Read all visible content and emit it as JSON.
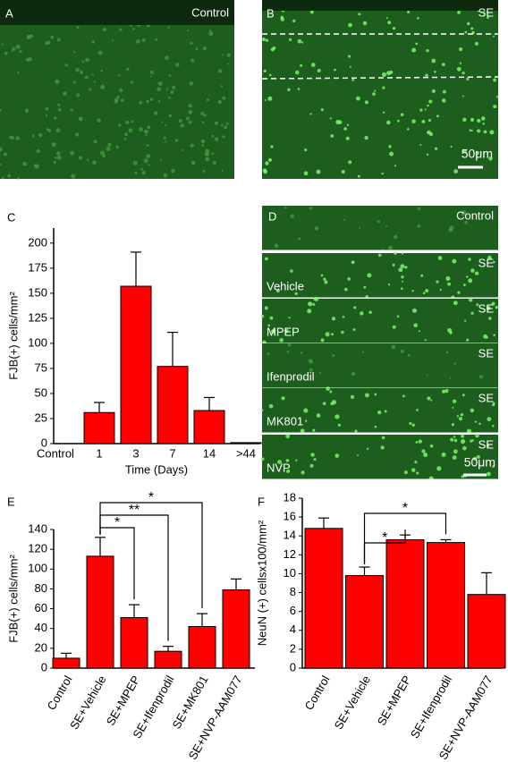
{
  "panels": {
    "A": {
      "letter": "A",
      "label": "Control"
    },
    "B": {
      "letter": "B",
      "label": "SE",
      "scale": "50μm"
    },
    "C": {
      "letter": "C"
    },
    "D": {
      "letter": "D",
      "scale": "50μm",
      "strips": [
        {
          "tag": "Control"
        },
        {
          "tag": "SE",
          "label": "Vehicle"
        },
        {
          "tag": "SE",
          "label": "MPEP"
        },
        {
          "tag": "SE",
          "label": "Ifenprodil"
        },
        {
          "tag": "SE",
          "label": "MK801"
        },
        {
          "tag": "SE",
          "label": "NVP"
        }
      ]
    },
    "E": {
      "letter": "E"
    },
    "F": {
      "letter": "F"
    }
  },
  "chart_data": [
    {
      "type": "bar",
      "ylabel": "FJB(+) cells/mm²",
      "xlabel": "Time (Days)",
      "color": "#ff0000",
      "categories": [
        "Control",
        "1",
        "3",
        "7",
        "14",
        ">44"
      ],
      "values": [
        0,
        31,
        157,
        77,
        33,
        1
      ],
      "errors": [
        0,
        10,
        34,
        34,
        13,
        0
      ],
      "ylim": [
        0,
        215
      ],
      "yticks": [
        0,
        25,
        50,
        75,
        100,
        125,
        150,
        175,
        200
      ]
    },
    {
      "type": "bar",
      "ylabel": "FJB(+) cells/mm²",
      "color": "#ff0000",
      "categories": [
        "Control",
        "SE+Vehicle",
        "SE+MPEP",
        "SE+Ifenprodil",
        "SE+MK801",
        "SE+NVP-AAM077"
      ],
      "values": [
        10,
        113,
        51,
        17,
        42,
        79
      ],
      "errors": [
        5,
        19,
        13,
        5,
        13,
        11
      ],
      "ylim": [
        0,
        140
      ],
      "yticks": [
        0,
        20,
        40,
        60,
        80,
        100,
        120,
        140
      ],
      "annotations": [
        {
          "from": 1,
          "to": 2,
          "label": "*"
        },
        {
          "from": 1,
          "to": 3,
          "label": "**"
        },
        {
          "from": 1,
          "to": 4,
          "label": "*"
        }
      ]
    },
    {
      "type": "bar",
      "ylabel": "NeuN (+) cellsx100/mm²",
      "color": "#ff0000",
      "categories": [
        "Control",
        "SE+Vehicle",
        "SE+MPEP",
        "SE+Ifenprodil",
        "SE+NVP-AAM077"
      ],
      "values": [
        14.8,
        9.8,
        13.6,
        13.3,
        7.8
      ],
      "errors": [
        1.1,
        0.9,
        0.5,
        0.3,
        2.3
      ],
      "ylim": [
        0,
        18
      ],
      "yticks": [
        0,
        2,
        4,
        6,
        8,
        10,
        12,
        14,
        16,
        18
      ],
      "annotations": [
        {
          "from": 1,
          "to": 2,
          "label": "*"
        },
        {
          "from": 1,
          "to": 3,
          "label": "*"
        }
      ]
    }
  ]
}
